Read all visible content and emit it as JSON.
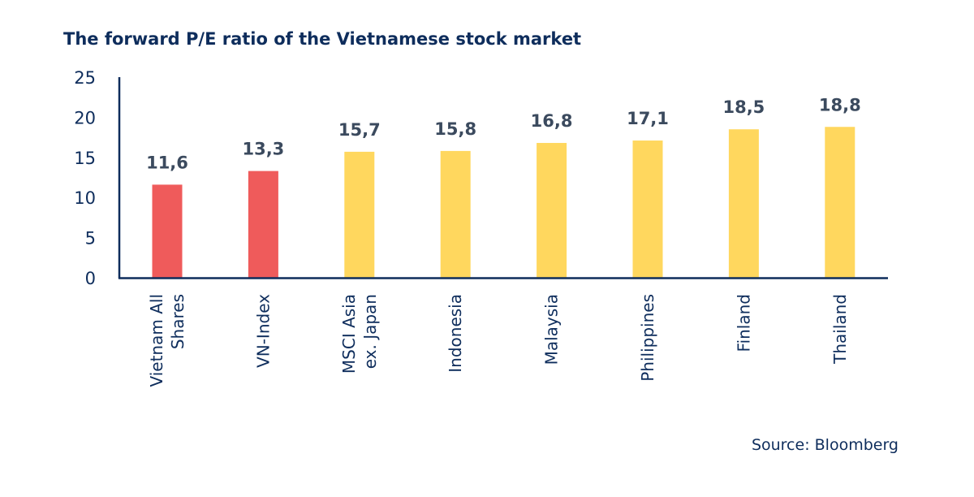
{
  "chart_data": {
    "type": "bar",
    "title": "The forward P/E ratio of the Vietnamese stock market",
    "categories": [
      [
        "Vietnam All",
        "Shares"
      ],
      [
        "VN-Index"
      ],
      [
        "MSCI Asia",
        "ex. Japan"
      ],
      [
        "Indonesia"
      ],
      [
        "Malaysia"
      ],
      [
        "Philippines"
      ],
      [
        "Finland"
      ],
      [
        "Thailand"
      ]
    ],
    "values": [
      11.6,
      13.3,
      15.7,
      15.8,
      16.8,
      17.1,
      18.5,
      18.8
    ],
    "data_labels": [
      "11,6",
      "13,3",
      "15,7",
      "15,8",
      "16,8",
      "17,1",
      "18,5",
      "18,8"
    ],
    "ylim": [
      0,
      25
    ],
    "yticks": [
      0,
      5,
      10,
      15,
      20,
      25
    ],
    "grid": false,
    "legend": "none",
    "colors": {
      "highlight": "#EF5B5B",
      "default": "#FFD75E",
      "title": "#0E2D5C",
      "axis": "#0E2D5C",
      "data_label": "#3B4A5E",
      "tick_label": "#0E2D5C"
    },
    "bar_colors": [
      "highlight",
      "highlight",
      "default",
      "default",
      "default",
      "default",
      "default",
      "default"
    ],
    "source": "Source: Bloomberg"
  }
}
